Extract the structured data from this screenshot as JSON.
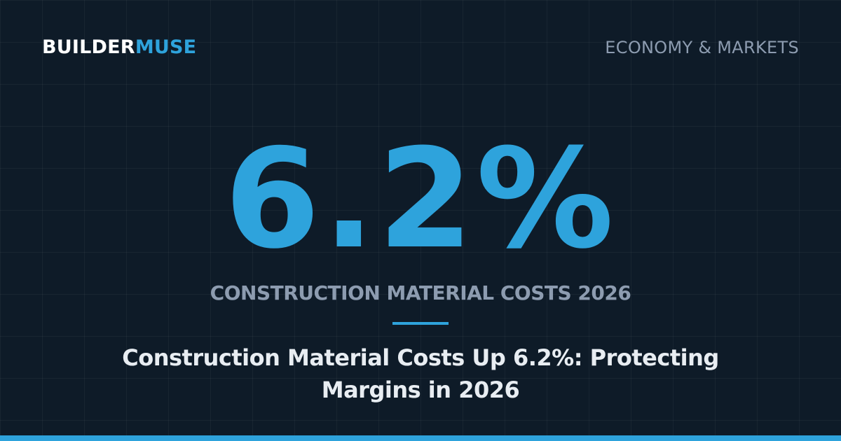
{
  "brand": {
    "part1": "BUILDER",
    "part2": "MUSE"
  },
  "category": "ECONOMY & MARKETS",
  "stat": {
    "value": "6.2%",
    "label": "CONSTRUCTION MATERIAL COSTS 2026"
  },
  "headline": "Construction Material Costs Up 6.2%: Protecting Margins in 2026"
}
